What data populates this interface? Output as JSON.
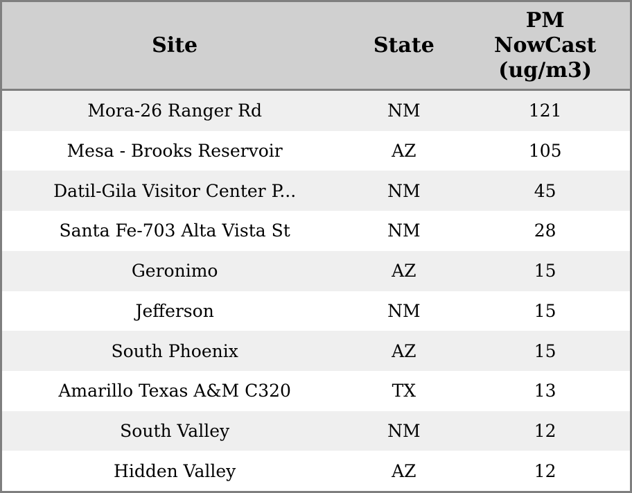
{
  "header": {
    "site": "Site",
    "state": "State",
    "pm": "PM\nNowCast\n(ug/m3)"
  },
  "rows": [
    {
      "site": "Mora-26 Ranger Rd",
      "state": "NM",
      "pm": 121
    },
    {
      "site": "Mesa - Brooks Reservoir",
      "state": "AZ",
      "pm": 105
    },
    {
      "site": "Datil-Gila Visitor Center P...",
      "state": "NM",
      "pm": 45
    },
    {
      "site": "Santa Fe-703 Alta Vista St",
      "state": "NM",
      "pm": 28
    },
    {
      "site": "Geronimo",
      "state": "AZ",
      "pm": 15
    },
    {
      "site": "Jefferson",
      "state": "NM",
      "pm": 15
    },
    {
      "site": "South Phoenix",
      "state": "AZ",
      "pm": 15
    },
    {
      "site": "Amarillo Texas A&M C320",
      "state": "TX",
      "pm": 13
    },
    {
      "site": "South Valley",
      "state": "NM",
      "pm": 12
    },
    {
      "site": "Hidden Valley",
      "state": "AZ",
      "pm": 12
    }
  ],
  "colors": {
    "header_bg": "#d0d0d0",
    "stripe_row_bg": "#efefef",
    "plain_row_bg": "#ffffff",
    "border": "#7f7f7f",
    "text": "#000000"
  }
}
